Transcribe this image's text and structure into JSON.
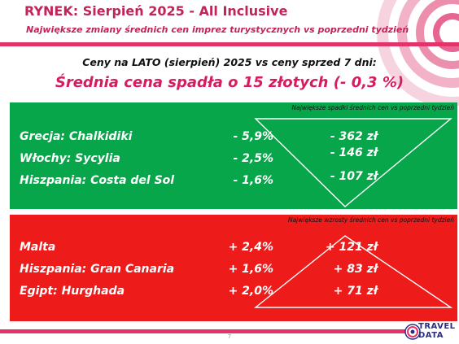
{
  "header": {
    "title": "RYNEK: Sierpień 2025 - All Inclusive",
    "subtitle": "Największe zmiany średnich cen imprez turystycznych vs poprzedni tydzień"
  },
  "summary": {
    "comparison": "Ceny na LATO (sierpień) 2025 vs ceny sprzed 7 dni:",
    "headline": "Średnia cena spadła o 15 złotych (- 0,3 %)"
  },
  "decreases": {
    "caption": "Największe spadki średnich cen vs poprzedni tydzień",
    "rows": [
      {
        "destination": "Grecja: Chalkidiki",
        "percent": "- 5,9%",
        "amount": "- 362 zł"
      },
      {
        "destination": "Włochy: Sycylia",
        "percent": "- 2,5%",
        "amount": "- 146 zł"
      },
      {
        "destination": "Hiszpania: Costa del Sol",
        "percent": "- 1,6%",
        "amount": "- 107 zł"
      }
    ]
  },
  "increases": {
    "caption": "Największe wzrosty średnich cen vs poprzedni tydzień",
    "rows": [
      {
        "destination": "Malta",
        "percent": "+ 2,4%",
        "amount": "+ 121 zł"
      },
      {
        "destination": "Hiszpania: Gran Canaria",
        "percent": "+ 1,6%",
        "amount": "+ 83 zł"
      },
      {
        "destination": "Egipt: Hurghada",
        "percent": "+ 2,0%",
        "amount": "+ 71 zł"
      }
    ]
  },
  "footer": {
    "page_number": "7",
    "logo_line1": "TRAVEL",
    "logo_line2": "DATA"
  },
  "colors": {
    "accent": "#e3336b",
    "title": "#c0245a",
    "headline": "#d81b60",
    "decrease_panel": "#08a64a",
    "increase_panel": "#ee1b1b",
    "logo": "#2b2e83"
  }
}
